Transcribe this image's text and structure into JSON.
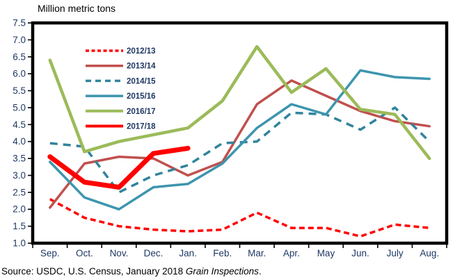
{
  "title": "Million metric tons",
  "source": {
    "prefix": "Source: USDC, U.S. Census, January 2018 ",
    "italic_text": "Grain Inspections",
    "suffix": "."
  },
  "colors": {
    "axis_text": "#1F3864",
    "axis_line": "#000000",
    "background": "#FFFFFF"
  },
  "chart_data": {
    "type": "line",
    "title": "Million metric tons",
    "xlabel": "",
    "ylabel": "Million metric tons",
    "ylim": [
      1.0,
      7.5
    ],
    "ytick_step": 0.5,
    "grid": false,
    "legend_position": "inside-top-left",
    "categories": [
      "Sep.",
      "Oct.",
      "Nov.",
      "Dec.",
      "Jan.",
      "Feb.",
      "Mar.",
      "Apr.",
      "May",
      "Jun.",
      "July",
      "Aug."
    ],
    "y_tick_labels": [
      "7.5",
      "7.0",
      "6.5",
      "6.0",
      "5.5",
      "5.0",
      "4.5",
      "4.0",
      "3.5",
      "3.0",
      "2.5",
      "2.0",
      "1.5",
      "1.0"
    ],
    "series": [
      {
        "name": "2012/13",
        "color": "#FF0000",
        "dash": "dashed",
        "dash_pattern": "8,5",
        "width": 3.5,
        "values": [
          2.3,
          1.75,
          1.5,
          1.4,
          1.35,
          1.4,
          1.9,
          1.45,
          1.45,
          1.2,
          1.55,
          1.45
        ]
      },
      {
        "name": "2013/14",
        "color": "#C0504D",
        "dash": "solid",
        "dash_pattern": "",
        "width": 3.5,
        "values": [
          2.05,
          3.35,
          3.55,
          3.5,
          3.0,
          3.4,
          5.1,
          5.8,
          5.35,
          4.9,
          4.6,
          4.45
        ]
      },
      {
        "name": "2014/15",
        "color": "#31849B",
        "dash": "dashed",
        "dash_pattern": "11,8",
        "width": 3.5,
        "values": [
          3.95,
          3.85,
          2.5,
          3.0,
          3.3,
          3.95,
          4.0,
          4.85,
          4.8,
          4.35,
          5.0,
          4.0
        ]
      },
      {
        "name": "2015/16",
        "color": "#3D95AE",
        "dash": "solid",
        "dash_pattern": "",
        "width": 3.5,
        "values": [
          3.4,
          2.35,
          2.0,
          2.65,
          2.75,
          3.35,
          4.4,
          5.1,
          4.8,
          6.1,
          5.9,
          5.85
        ]
      },
      {
        "name": "2016/17",
        "color": "#9BBB59",
        "dash": "solid",
        "dash_pattern": "",
        "width": 4.5,
        "values": [
          6.4,
          3.7,
          4.0,
          4.2,
          4.4,
          5.2,
          6.8,
          5.45,
          6.15,
          4.95,
          4.8,
          3.5
        ]
      },
      {
        "name": "2017/18",
        "color": "#FF0000",
        "dash": "solid",
        "dash_pattern": "",
        "width": 7,
        "values": [
          3.55,
          2.8,
          2.65,
          3.65,
          3.8,
          null,
          null,
          null,
          null,
          null,
          null,
          null
        ]
      }
    ]
  }
}
